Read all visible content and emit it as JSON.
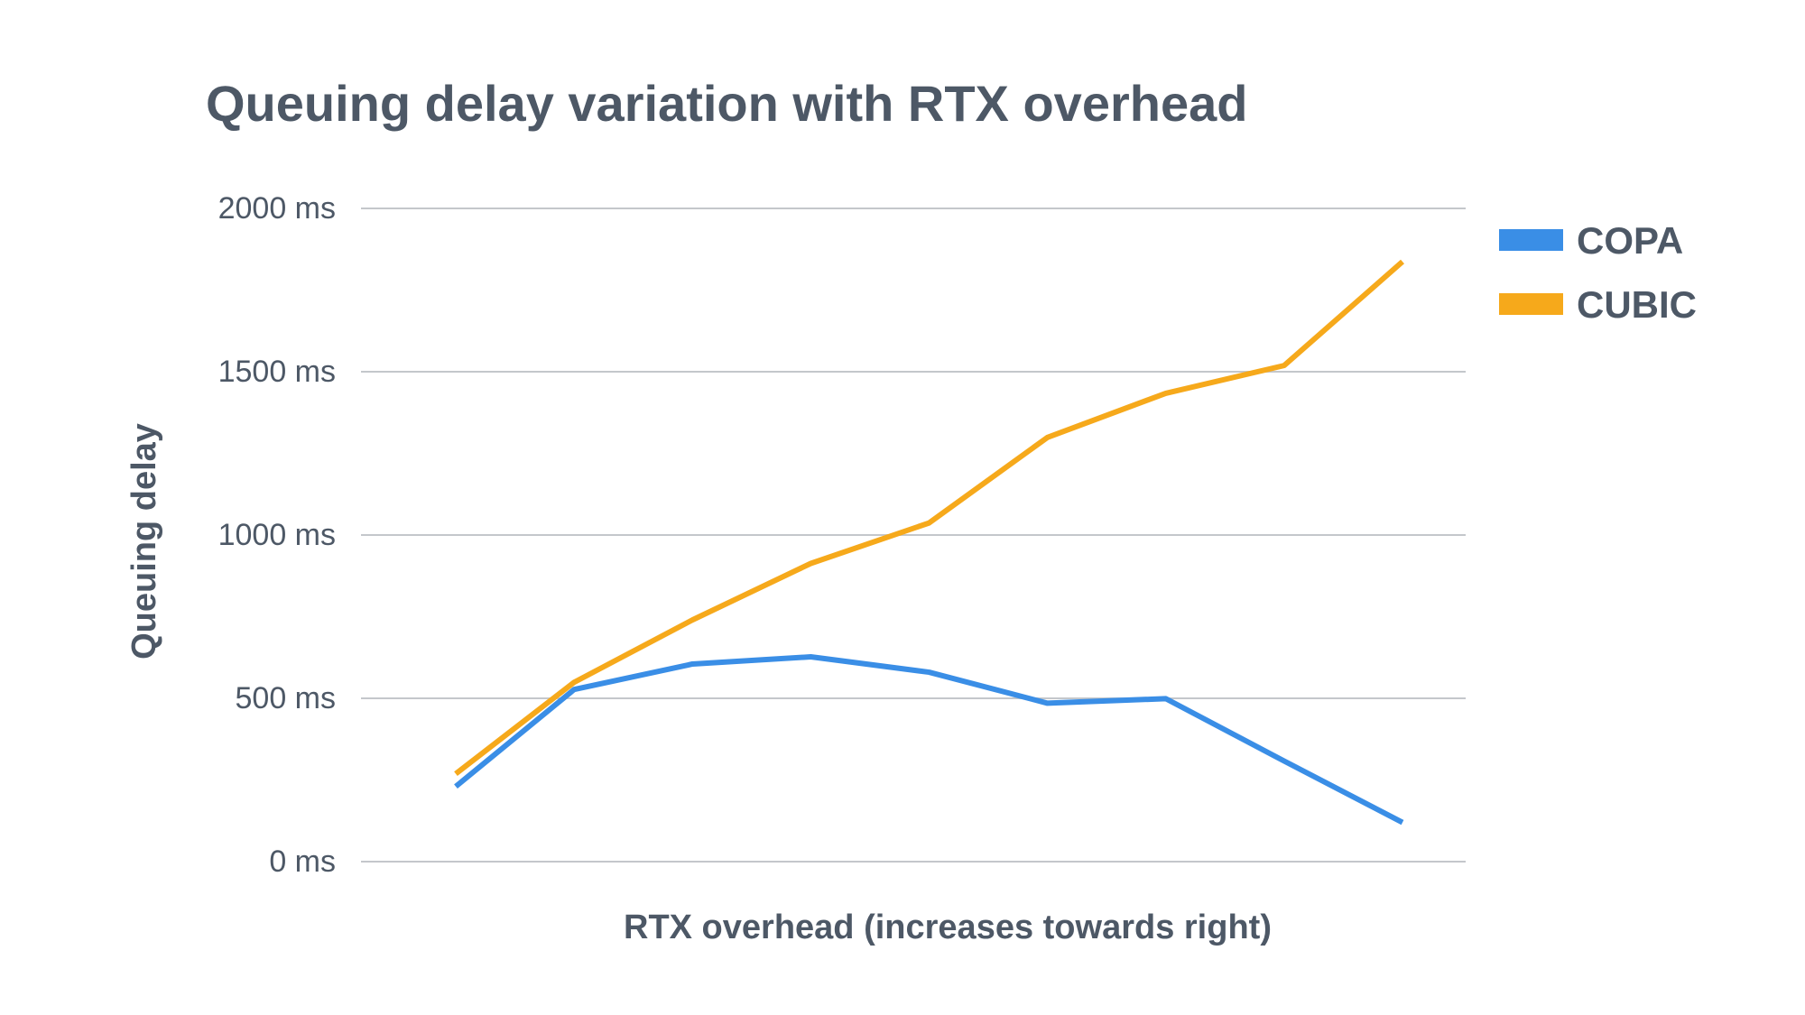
{
  "chart_data": {
    "type": "line",
    "title": "Queuing delay variation with RTX overhead",
    "xlabel": "RTX overhead (increases towards right)",
    "ylabel": "Queuing delay",
    "ylim": [
      0,
      2000
    ],
    "yticks": [
      "0 ms",
      "500 ms",
      "1000 ms",
      "1500 ms",
      "2000 ms"
    ],
    "ytick_values": [
      0,
      500,
      1000,
      1500,
      2000
    ],
    "x": [
      1,
      2,
      3,
      4,
      5,
      6,
      7,
      8,
      9
    ],
    "grid": true,
    "legend_position": "right",
    "series": [
      {
        "name": "COPA",
        "color": "#3a8ee6",
        "values": [
          230,
          527,
          605,
          627,
          580,
          485,
          499,
          308,
          120
        ]
      },
      {
        "name": "CUBIC",
        "color": "#f6a91b",
        "values": [
          269,
          549,
          740,
          913,
          1037,
          1299,
          1434,
          1519,
          1837
        ]
      }
    ]
  }
}
